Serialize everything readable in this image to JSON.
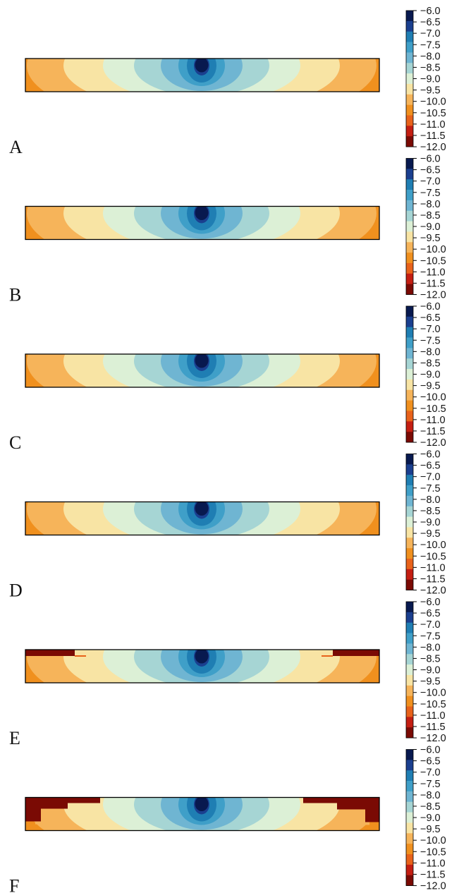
{
  "chart_data": [
    {
      "type": "heatmap",
      "panel_label": "A",
      "colorbar": {
        "ticks": [
          "−6.0",
          "−6.5",
          "−7.0",
          "−7.5",
          "−8.0",
          "−8.5",
          "−9.0",
          "−9.5",
          "−10.0",
          "−10.5",
          "−11.0",
          "−11.5",
          "−12.0"
        ],
        "range": [
          -12.0,
          -6.0
        ]
      },
      "edge_artifact": "none"
    },
    {
      "type": "heatmap",
      "panel_label": "B",
      "colorbar": {
        "ticks": [
          "−6.0",
          "−6.5",
          "−7.0",
          "−7.5",
          "−8.0",
          "−8.5",
          "−9.0",
          "−9.5",
          "−10.0",
          "−10.5",
          "−11.0",
          "−11.5",
          "−12.0"
        ],
        "range": [
          -12.0,
          -6.0
        ]
      },
      "edge_artifact": "none"
    },
    {
      "type": "heatmap",
      "panel_label": "C",
      "colorbar": {
        "ticks": [
          "−6.0",
          "−6.5",
          "−7.0",
          "−7.5",
          "−8.0",
          "−8.5",
          "−9.0",
          "−9.5",
          "−10.0",
          "−10.5",
          "−11.0",
          "−11.5",
          "−12.0"
        ],
        "range": [
          -12.0,
          -6.0
        ]
      },
      "edge_artifact": "none"
    },
    {
      "type": "heatmap",
      "panel_label": "D",
      "colorbar": {
        "ticks": [
          "−6.0",
          "−6.5",
          "−7.0",
          "−7.5",
          "−8.0",
          "−8.5",
          "−9.0",
          "−9.5",
          "−10.0",
          "−10.5",
          "−11.0",
          "−11.5",
          "−12.0"
        ],
        "range": [
          -12.0,
          -6.0
        ]
      },
      "edge_artifact": "none"
    },
    {
      "type": "heatmap",
      "panel_label": "E",
      "colorbar": {
        "ticks": [
          "−6.0",
          "−6.5",
          "−7.0",
          "−7.5",
          "−8.0",
          "−8.5",
          "−9.0",
          "−9.5",
          "−10.0",
          "−10.5",
          "−11.0",
          "−11.5",
          "−12.0"
        ],
        "range": [
          -12.0,
          -6.0
        ]
      },
      "edge_artifact": "small"
    },
    {
      "type": "heatmap",
      "panel_label": "F",
      "colorbar": {
        "ticks": [
          "−6.0",
          "−6.5",
          "−7.0",
          "−7.5",
          "−8.0",
          "−8.5",
          "−9.0",
          "−9.5",
          "−10.0",
          "−10.5",
          "−11.0",
          "−11.5",
          "−12.0"
        ],
        "range": [
          -12.0,
          -6.0
        ]
      },
      "edge_artifact": "large"
    }
  ],
  "colormap": [
    "#08194f",
    "#1a3f8f",
    "#1f7eb3",
    "#3f9fc8",
    "#6fb5d2",
    "#a6d5d4",
    "#dcf0d6",
    "#f8e4a4",
    "#f6b45a",
    "#f0901e",
    "#e8621a",
    "#c41e12",
    "#7a0a04"
  ]
}
